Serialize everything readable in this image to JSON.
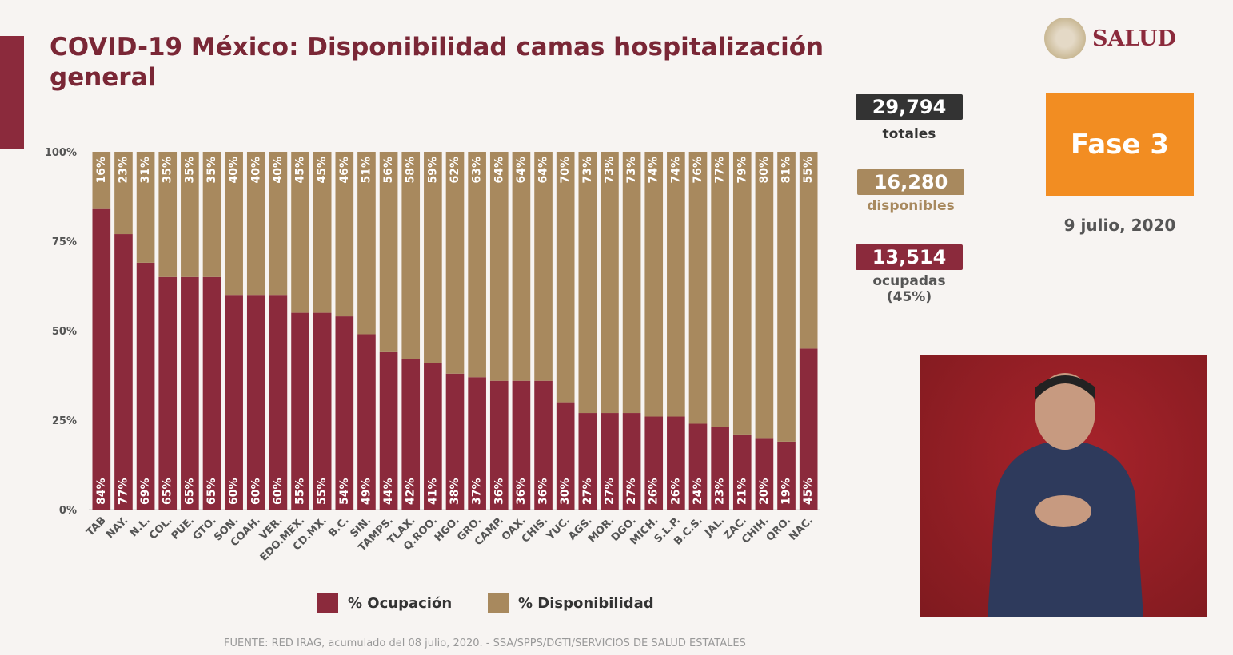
{
  "header": {
    "title": "COVID-19 México: Disponibilidad camas hospitalización general",
    "logo_text": "SALUD"
  },
  "stats": {
    "totales": {
      "value": "29,794",
      "label": "totales"
    },
    "disponibles": {
      "value": "16,280",
      "label": "disponibles"
    },
    "ocupadas": {
      "value": "13,514",
      "label": "ocupadas",
      "pct": "(45%)"
    }
  },
  "phase": "Fase 3",
  "date": "9 julio, 2020",
  "source": "FUENTE: RED IRAG, acumulado del 08 julio, 2020. - SSA/SPPS/DGTI/SERVICIOS DE SALUD ESTATALES",
  "colors": {
    "ocupacion": "#8b2a3c",
    "disponibilidad": "#a8895e",
    "phase": "#f28d22",
    "totales": "#333333"
  },
  "chart_data": {
    "type": "bar",
    "stacked": true,
    "orientation": "vertical",
    "categories": [
      "TAB",
      "NAY.",
      "N.L.",
      "COL.",
      "PUE.",
      "GTO.",
      "SON.",
      "COAH.",
      "VER.",
      "EDO.MEX.",
      "CD.MX.",
      "B.C.",
      "SIN.",
      "TAMPS.",
      "TLAX.",
      "Q.ROO.",
      "HGO.",
      "GRO.",
      "CAMP.",
      "OAX.",
      "CHIS.",
      "YUC.",
      "AGS.",
      "MOR.",
      "DGO.",
      "MICH.",
      "S.L.P.",
      "B.C.S.",
      "JAL.",
      "ZAC.",
      "CHIH.",
      "QRO.",
      "NAC."
    ],
    "series": [
      {
        "name": "% Ocupación",
        "values": [
          84,
          77,
          69,
          65,
          65,
          65,
          60,
          60,
          60,
          55,
          55,
          54,
          49,
          44,
          42,
          41,
          38,
          37,
          36,
          36,
          36,
          30,
          27,
          27,
          27,
          26,
          26,
          24,
          23,
          21,
          20,
          19,
          45
        ]
      },
      {
        "name": "% Disponibilidad",
        "values": [
          16,
          23,
          31,
          35,
          35,
          35,
          40,
          40,
          40,
          45,
          45,
          46,
          51,
          56,
          58,
          59,
          62,
          63,
          64,
          64,
          64,
          70,
          73,
          73,
          73,
          74,
          74,
          76,
          77,
          79,
          80,
          81,
          55
        ]
      }
    ],
    "yticks": [
      "0%",
      "25%",
      "50%",
      "75%",
      "100%"
    ],
    "ylim": [
      0,
      100
    ],
    "legend": "bottom",
    "grid": false
  }
}
